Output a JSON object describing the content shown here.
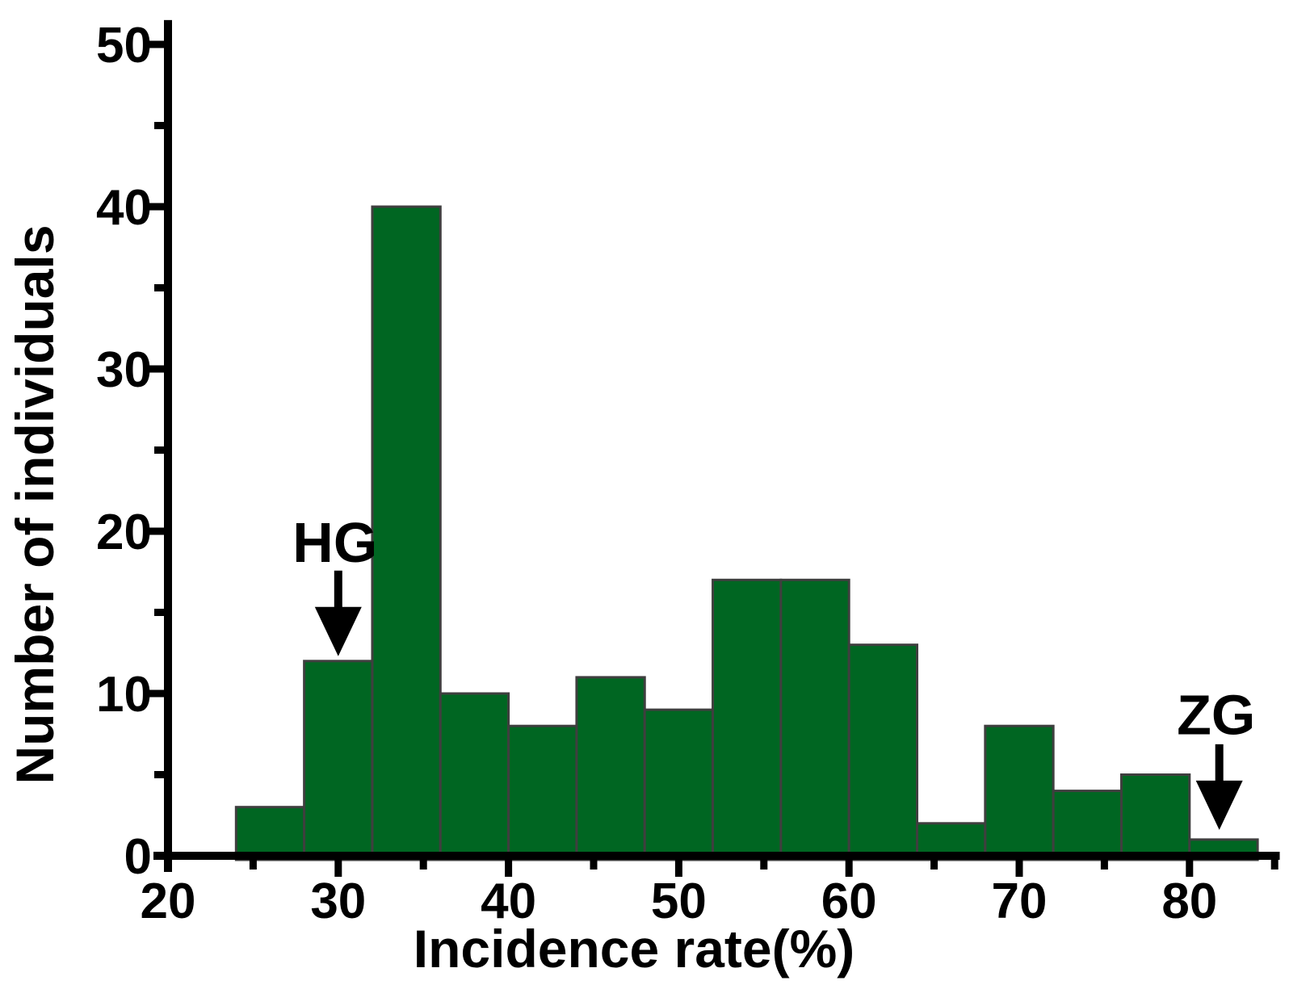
{
  "figure": {
    "background": "#ffffff",
    "kind": "histogram"
  },
  "chart_data": {
    "type": "bar",
    "title": "",
    "xlabel": "Incidence rate(%)",
    "ylabel": "Number of individuals",
    "bar_color": "#006622",
    "bar_edge_color": "#3f3f3f",
    "axis_color": "#000000",
    "text_color": "#000000",
    "bin_width": 4,
    "bin_edges": [
      24,
      28,
      32,
      36,
      40,
      44,
      48,
      52,
      56,
      60,
      64,
      68,
      72,
      76,
      80,
      84
    ],
    "values": [
      3,
      12,
      40,
      10,
      8,
      11,
      9,
      17,
      17,
      13,
      2,
      8,
      4,
      5,
      1
    ],
    "xlim": [
      20,
      85.3
    ],
    "ylim": [
      0,
      51.5
    ],
    "x_major_ticks": [
      20,
      30,
      40,
      50,
      60,
      70,
      80
    ],
    "x_minor_ticks": [
      25,
      35,
      45,
      55,
      65,
      75,
      85
    ],
    "y_major_ticks": [
      0,
      10,
      20,
      30,
      40,
      50
    ],
    "y_minor_ticks": [
      5,
      15,
      25,
      35,
      45
    ],
    "grid": false,
    "legend": null,
    "annotations": [
      {
        "label": "HG",
        "x": 30.0,
        "arrow_tip_y": 12.3,
        "label_y": 18.1
      },
      {
        "label": "ZG",
        "x": 81.75,
        "arrow_tip_y": 1.6,
        "label_y": 7.5
      }
    ]
  }
}
